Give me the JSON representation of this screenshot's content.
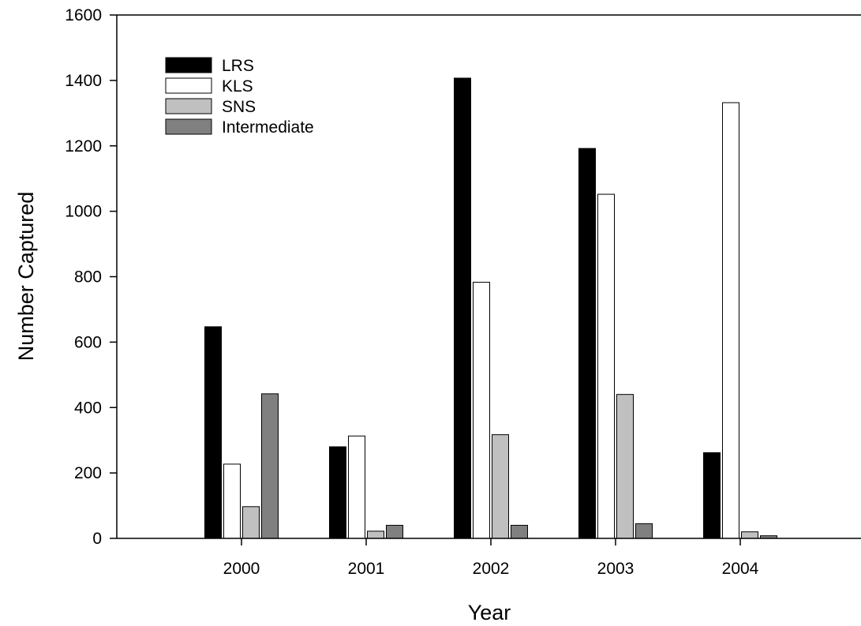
{
  "chart_data": {
    "type": "bar",
    "categories": [
      "2000",
      "2001",
      "2002",
      "2003",
      "2004"
    ],
    "series": [
      {
        "name": "LRS",
        "color": "#000000",
        "values": [
          647,
          280,
          1407,
          1192,
          262
        ]
      },
      {
        "name": "KLS",
        "color": "#ffffff",
        "values": [
          227,
          313,
          783,
          1052,
          1332
        ]
      },
      {
        "name": "SNS",
        "color": "#c0c0c0",
        "values": [
          97,
          22,
          317,
          440,
          20
        ]
      },
      {
        "name": "Intermediate",
        "color": "#808080",
        "values": [
          442,
          40,
          40,
          45,
          8
        ]
      }
    ],
    "xlabel": "Year",
    "ylabel": "Number Captured",
    "ylim": [
      0,
      1600
    ],
    "yticks": [
      0,
      200,
      400,
      600,
      800,
      1000,
      1200,
      1400,
      1600
    ],
    "legend_position": "top-left",
    "grid": false
  }
}
